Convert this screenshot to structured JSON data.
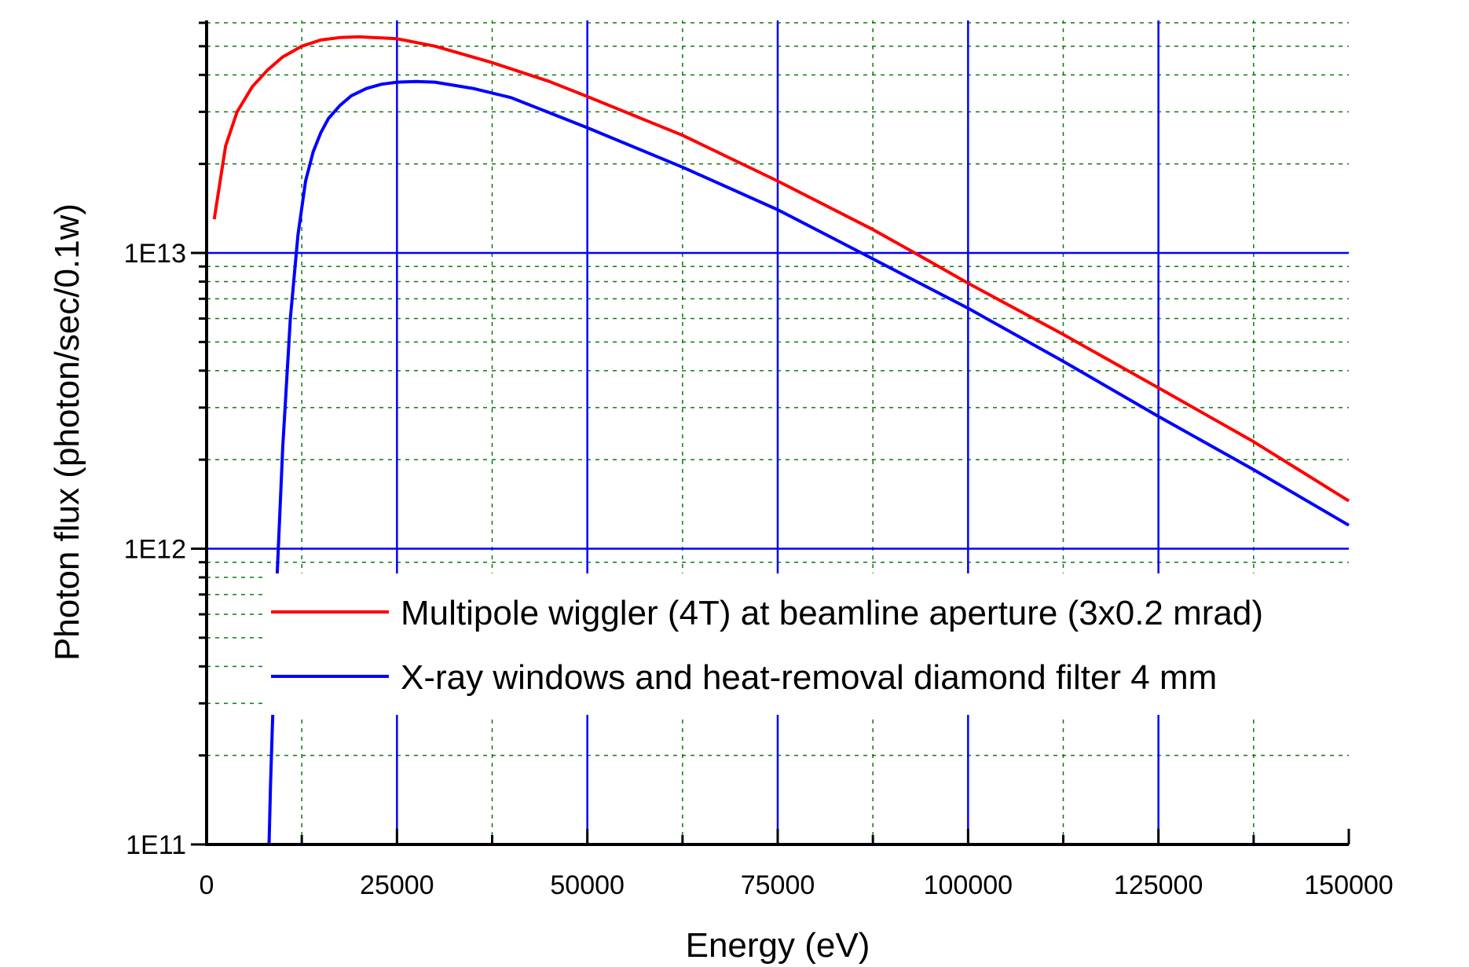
{
  "chart_data": {
    "type": "line",
    "xlabel": "Energy (eV)",
    "ylabel": "Photon flux (photon/sec/0.1w)",
    "xlim": [
      0,
      150000
    ],
    "ylim": [
      100000000000.0,
      70000000000000.0
    ],
    "yscale": "log",
    "x_ticks": [
      0,
      25000,
      50000,
      75000,
      100000,
      125000,
      150000
    ],
    "x_tick_labels": [
      "0",
      "25000",
      "50000",
      "75000",
      "100000",
      "125000",
      "150000"
    ],
    "y_ticks": [
      100000000000.0,
      1000000000000.0,
      10000000000000.0
    ],
    "y_tick_labels": [
      "1E11",
      "1E12",
      "1E13"
    ],
    "grid": {
      "major": "solid blue",
      "minor": "dashed green"
    },
    "legend_position": "center-right",
    "series": [
      {
        "name": "Multipole wiggler (4T) at beamline aperture (3x0.2 mrad)",
        "color": "#ff0000",
        "x": [
          1000,
          2500,
          4000,
          6000,
          8000,
          10000,
          12500,
          15000,
          17500,
          20000,
          25000,
          30000,
          37500,
          45000,
          50000,
          62500,
          75000,
          87500,
          93000,
          100000,
          112500,
          125000,
          137500,
          150000
        ],
        "y": [
          13000000000000.0,
          23000000000000.0,
          30000000000000.0,
          36500000000000.0,
          41500000000000.0,
          46000000000000.0,
          50000000000000.0,
          52500000000000.0,
          53500000000000.0,
          53800000000000.0,
          53000000000000.0,
          50000000000000.0,
          44000000000000.0,
          38000000000000.0,
          33800000000000.0,
          25000000000000.0,
          17500000000000.0,
          12000000000000.0,
          10000000000000.0,
          7900000000000.0,
          5300000000000.0,
          3500000000000.0,
          2300000000000.0,
          1450000000000.0
        ]
      },
      {
        "name": "X-ray windows and heat-removal diamond filter 4 mm",
        "color": "#0000ff",
        "x": [
          8200,
          8400,
          8700,
          9000,
          9300,
          10000,
          11000,
          12000,
          13000,
          14000,
          15000,
          16000,
          17500,
          19000,
          21000,
          23000,
          25000,
          27500,
          30000,
          35000,
          40000,
          50000,
          62500,
          75000,
          86000,
          100000,
          112500,
          125000,
          137500,
          150000
        ],
        "y": [
          100000000000.0,
          160000000000.0,
          280000000000.0,
          450000000000.0,
          850000000000.0,
          2200000000000.0,
          6000000000000.0,
          11500000000000.0,
          17500000000000.0,
          22000000000000.0,
          25500000000000.0,
          28500000000000.0,
          31500000000000.0,
          34000000000000.0,
          36000000000000.0,
          37200000000000.0,
          37800000000000.0,
          38000000000000.0,
          37800000000000.0,
          36000000000000.0,
          33500000000000.0,
          26500000000000.0,
          19500000000000.0,
          14000000000000.0,
          10000000000000.0,
          6500000000000.0,
          4300000000000.0,
          2800000000000.0,
          1850000000000.0,
          1200000000000.0
        ]
      }
    ]
  }
}
